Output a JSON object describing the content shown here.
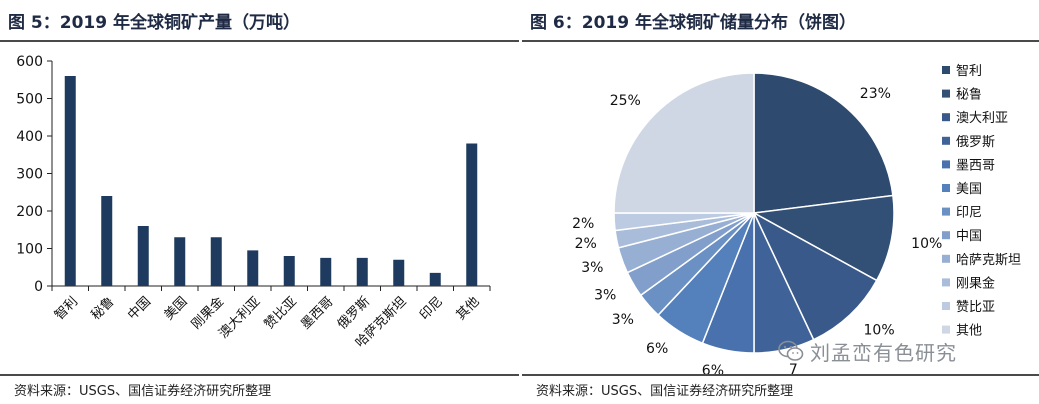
{
  "colors": {
    "bar": "#1f3a5f",
    "axis": "#222222"
  },
  "left_panel": {
    "title": "图 5：2019 年全球铜矿产量（万吨）",
    "source": "资料来源：USGS、国信证券经济研究所整理"
  },
  "right_panel": {
    "title": "图 6：2019 年全球铜矿储量分布（饼图）",
    "source": "资料来源：USGS、国信证券经济研究所整理",
    "watermark": "刘孟峦有色研究",
    "watermark_icon": "wechat-icon"
  },
  "chart_data": [
    {
      "type": "bar",
      "title": "",
      "xlabel": "",
      "ylabel": "",
      "categories": [
        "智利",
        "秘鲁",
        "中国",
        "美国",
        "刚果金",
        "澳大利亚",
        "赞比亚",
        "墨西哥",
        "俄罗斯",
        "哈萨克斯坦",
        "印尼",
        "其他"
      ],
      "values": [
        560,
        240,
        160,
        130,
        130,
        95,
        80,
        75,
        75,
        70,
        35,
        380
      ],
      "ylim": [
        0,
        600
      ],
      "yticks": [
        0,
        100,
        200,
        300,
        400,
        500,
        600
      ],
      "grid": false
    },
    {
      "type": "pie",
      "title": "",
      "legend_position": "right",
      "slices": [
        {
          "label": "智利",
          "value": 23,
          "display": "23%",
          "color": "#2e4a6e"
        },
        {
          "label": "秘鲁",
          "value": 10,
          "display": "10%",
          "color": "#324f76"
        },
        {
          "label": "澳大利亚",
          "value": 10,
          "display": "10%",
          "color": "#38598a"
        },
        {
          "label": "俄罗斯",
          "value": 7,
          "display": "7",
          "color": "#3f6398"
        },
        {
          "label": "墨西哥",
          "value": 6,
          "display": "6%",
          "color": "#4871ad"
        },
        {
          "label": "美国",
          "value": 6,
          "display": "6%",
          "color": "#5480bb"
        },
        {
          "label": "印尼",
          "value": 3,
          "display": "3%",
          "color": "#6a90c4"
        },
        {
          "label": "中国",
          "value": 3,
          "display": "3%",
          "color": "#829fcb"
        },
        {
          "label": "哈萨克斯坦",
          "value": 3,
          "display": "3%",
          "color": "#97afd3"
        },
        {
          "label": "刚果金",
          "value": 2,
          "display": "2%",
          "color": "#a9bddb"
        },
        {
          "label": "赞比亚",
          "value": 2,
          "display": "2%",
          "color": "#bccbe2"
        },
        {
          "label": "其他",
          "value": 25,
          "display": "25%",
          "color": "#cfd6e4"
        }
      ],
      "legend": [
        "智利",
        "秘鲁",
        "澳大利亚",
        "俄罗斯",
        "墨西哥",
        "美国",
        "印尼",
        "中国",
        "哈萨克斯坦",
        "刚果金",
        "赞比亚",
        "其他"
      ],
      "legend_colors": [
        "#2e4a6e",
        "#324f76",
        "#38598a",
        "#3f6398",
        "#4871ad",
        "#5480bb",
        "#6a90c4",
        "#829fcb",
        "#97afd3",
        "#a9bddb",
        "#bccbe2",
        "#cfd6e4"
      ]
    }
  ]
}
